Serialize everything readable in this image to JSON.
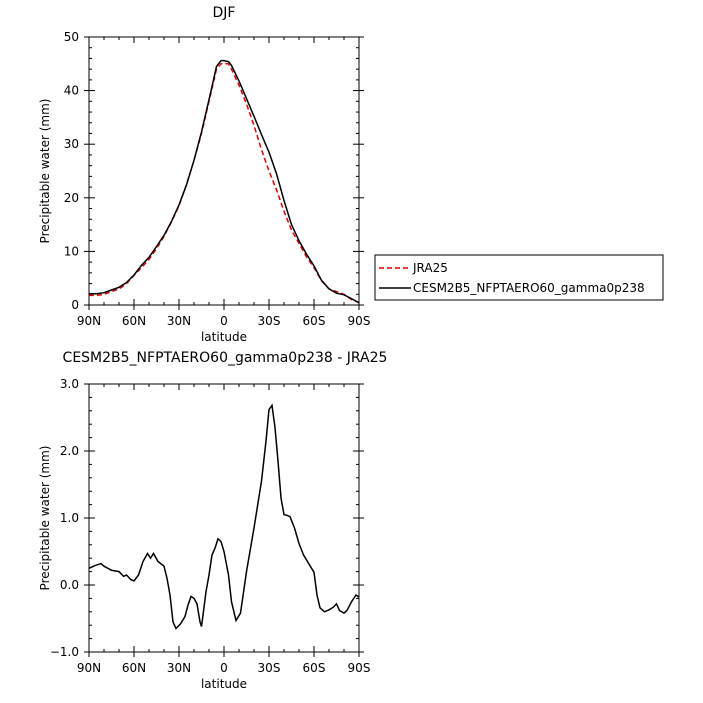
{
  "chart_data": [
    {
      "type": "line",
      "title": "DJF",
      "xlabel": "latitude",
      "ylabel": "Precipitable water (mm)",
      "xlim": [
        90,
        -90
      ],
      "ylim": [
        0,
        50
      ],
      "xticks": [
        90,
        60,
        30,
        0,
        -30,
        -60,
        -90
      ],
      "xtick_labels": [
        "90N",
        "60N",
        "30N",
        "0",
        "30S",
        "60S",
        "90S"
      ],
      "yticks": [
        0,
        10,
        20,
        30,
        40,
        50
      ],
      "ytick_labels": [
        "0",
        "10",
        "20",
        "30",
        "40",
        "50"
      ],
      "legend_position": "right",
      "series": [
        {
          "name": "JRA25",
          "color": "#dd0000",
          "dash": "dashed",
          "points": [
            [
              90,
              1.8
            ],
            [
              85,
              1.8
            ],
            [
              80,
              2.0
            ],
            [
              75,
              2.5
            ],
            [
              70,
              3.0
            ],
            [
              65,
              4.0
            ],
            [
              60,
              5.5
            ],
            [
              55,
              7.0
            ],
            [
              50,
              8.5
            ],
            [
              45,
              10.5
            ],
            [
              40,
              12.8
            ],
            [
              35,
              15.5
            ],
            [
              30,
              18.5
            ],
            [
              25,
              22.5
            ],
            [
              20,
              27.0
            ],
            [
              15,
              32.0
            ],
            [
              10,
              38.0
            ],
            [
              5,
              44.0
            ],
            [
              2,
              45.0
            ],
            [
              0,
              45.0
            ],
            [
              -3,
              45.0
            ],
            [
              -5,
              44.0
            ],
            [
              -10,
              41.0
            ],
            [
              -15,
              37.5
            ],
            [
              -20,
              33.5
            ],
            [
              -25,
              29.0
            ],
            [
              -30,
              25.0
            ],
            [
              -35,
              21.5
            ],
            [
              -40,
              17.5
            ],
            [
              -45,
              14.0
            ],
            [
              -50,
              11.5
            ],
            [
              -55,
              9.0
            ],
            [
              -60,
              7.0
            ],
            [
              -65,
              4.5
            ],
            [
              -70,
              3.0
            ],
            [
              -75,
              2.5
            ],
            [
              -80,
              2.0
            ],
            [
              -85,
              1.0
            ],
            [
              -90,
              0.5
            ]
          ]
        },
        {
          "name": "CESM2B5_NFPTAERO60_gamma0p238",
          "color": "#000000",
          "dash": "solid",
          "points": [
            [
              90,
              2.1
            ],
            [
              85,
              2.1
            ],
            [
              80,
              2.3
            ],
            [
              75,
              2.8
            ],
            [
              70,
              3.3
            ],
            [
              65,
              4.2
            ],
            [
              60,
              5.6
            ],
            [
              55,
              7.4
            ],
            [
              50,
              8.9
            ],
            [
              45,
              10.9
            ],
            [
              40,
              13.0
            ],
            [
              35,
              15.6
            ],
            [
              30,
              18.7
            ],
            [
              25,
              22.4
            ],
            [
              20,
              27.0
            ],
            [
              15,
              32.3
            ],
            [
              10,
              38.3
            ],
            [
              5,
              44.5
            ],
            [
              2,
              45.6
            ],
            [
              0,
              45.6
            ],
            [
              -3,
              45.4
            ],
            [
              -5,
              44.7
            ],
            [
              -10,
              41.8
            ],
            [
              -15,
              38.5
            ],
            [
              -20,
              35.2
            ],
            [
              -25,
              31.8
            ],
            [
              -30,
              28.5
            ],
            [
              -35,
              24.5
            ],
            [
              -40,
              19.5
            ],
            [
              -45,
              15.0
            ],
            [
              -50,
              12.0
            ],
            [
              -55,
              9.5
            ],
            [
              -60,
              7.3
            ],
            [
              -65,
              4.6
            ],
            [
              -70,
              3.0
            ],
            [
              -75,
              2.2
            ],
            [
              -80,
              1.9
            ],
            [
              -85,
              1.2
            ],
            [
              -90,
              0.4
            ]
          ]
        }
      ]
    },
    {
      "type": "line",
      "title": "CESM2B5_NFPTAERO60_gamma0p238 - JRA25",
      "xlabel": "latitude",
      "ylabel": "Precipitable water (mm)",
      "xlim": [
        90,
        -90
      ],
      "ylim": [
        -1.0,
        3.0
      ],
      "xticks": [
        90,
        60,
        30,
        0,
        -30,
        -60,
        -90
      ],
      "xtick_labels": [
        "90N",
        "60N",
        "30N",
        "0",
        "30S",
        "60S",
        "90S"
      ],
      "yticks": [
        -1.0,
        0.0,
        1.0,
        2.0,
        3.0
      ],
      "ytick_labels": [
        "−1.0",
        "0.0",
        "1.0",
        "2.0",
        "3.0"
      ],
      "series": [
        {
          "color": "#000000",
          "dash": "solid",
          "points": [
            [
              90,
              0.25
            ],
            [
              86,
              0.29
            ],
            [
              82,
              0.32
            ],
            [
              80,
              0.28
            ],
            [
              75,
              0.22
            ],
            [
              70,
              0.2
            ],
            [
              67,
              0.13
            ],
            [
              65,
              0.15
            ],
            [
              62,
              0.08
            ],
            [
              60,
              0.06
            ],
            [
              57,
              0.15
            ],
            [
              54,
              0.35
            ],
            [
              51,
              0.47
            ],
            [
              49,
              0.4
            ],
            [
              47,
              0.47
            ],
            [
              44,
              0.35
            ],
            [
              40,
              0.28
            ],
            [
              38,
              0.1
            ],
            [
              36,
              -0.15
            ],
            [
              34,
              -0.55
            ],
            [
              32,
              -0.65
            ],
            [
              29,
              -0.58
            ],
            [
              26,
              -0.47
            ],
            [
              24,
              -0.3
            ],
            [
              22,
              -0.17
            ],
            [
              20,
              -0.2
            ],
            [
              18,
              -0.28
            ],
            [
              16,
              -0.55
            ],
            [
              15,
              -0.62
            ],
            [
              14,
              -0.45
            ],
            [
              12,
              -0.1
            ],
            [
              10,
              0.15
            ],
            [
              8,
              0.45
            ],
            [
              6,
              0.55
            ],
            [
              4,
              0.69
            ],
            [
              2,
              0.65
            ],
            [
              0,
              0.5
            ],
            [
              -3,
              0.15
            ],
            [
              -5,
              -0.25
            ],
            [
              -8,
              -0.53
            ],
            [
              -11,
              -0.42
            ],
            [
              -15,
              0.2
            ],
            [
              -20,
              0.85
            ],
            [
              -25,
              1.55
            ],
            [
              -28,
              2.15
            ],
            [
              -30,
              2.62
            ],
            [
              -32,
              2.68
            ],
            [
              -34,
              2.35
            ],
            [
              -36,
              1.85
            ],
            [
              -38,
              1.3
            ],
            [
              -40,
              1.05
            ],
            [
              -42,
              1.04
            ],
            [
              -44,
              1.02
            ],
            [
              -47,
              0.85
            ],
            [
              -50,
              0.62
            ],
            [
              -53,
              0.45
            ],
            [
              -57,
              0.3
            ],
            [
              -60,
              0.19
            ],
            [
              -62,
              -0.15
            ],
            [
              -64,
              -0.34
            ],
            [
              -67,
              -0.4
            ],
            [
              -70,
              -0.37
            ],
            [
              -73,
              -0.33
            ],
            [
              -75,
              -0.28
            ],
            [
              -77,
              -0.38
            ],
            [
              -80,
              -0.42
            ],
            [
              -82,
              -0.38
            ],
            [
              -85,
              -0.25
            ],
            [
              -88,
              -0.15
            ],
            [
              -90,
              -0.18
            ]
          ]
        }
      ]
    }
  ]
}
